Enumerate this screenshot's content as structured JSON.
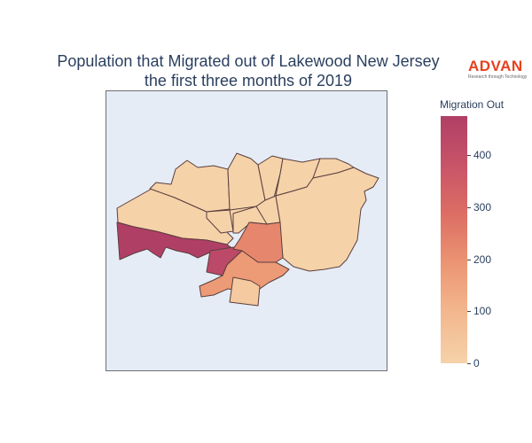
{
  "title": {
    "line1": "Population that Migrated out of Lakewood New Jersey",
    "line2": "the first three months of 2019"
  },
  "logo": {
    "word": "ADVAN",
    "tagline": "Research through Technology"
  },
  "colorbar": {
    "title": "Migration Out",
    "min": 0,
    "max": 475,
    "ticks": [
      {
        "value": 0,
        "label": "0"
      },
      {
        "value": 100,
        "label": "100"
      },
      {
        "value": 200,
        "label": "200"
      },
      {
        "value": 300,
        "label": "300"
      },
      {
        "value": 400,
        "label": "400"
      }
    ]
  },
  "colors": {
    "scale_low": "#f6d2a9",
    "scale_high": "#b03f66",
    "map_background": "#e5ecf6",
    "region_border": "#5a3e3e",
    "text": "#2a3f5f",
    "logo": "#e8401c"
  },
  "map_data": {
    "type": "choropleth",
    "value_label": "Migration Out",
    "regions": [
      {
        "id": "north-west",
        "value": 0
      },
      {
        "id": "north-center-a",
        "value": 0
      },
      {
        "id": "north-center-b",
        "value": 0
      },
      {
        "id": "north-center-c",
        "value": 0
      },
      {
        "id": "north-east",
        "value": 0
      },
      {
        "id": "west-strip",
        "value": 0
      },
      {
        "id": "center-small",
        "value": 0
      },
      {
        "id": "center-left",
        "value": 0
      },
      {
        "id": "east-large",
        "value": 0
      },
      {
        "id": "center-south",
        "value": 0
      },
      {
        "id": "south-west-long",
        "value": 475
      },
      {
        "id": "south-center-wedge",
        "value": 430
      },
      {
        "id": "south-middle",
        "value": 225
      },
      {
        "id": "south-lower",
        "value": 180
      },
      {
        "id": "south-bottom",
        "value": 30
      }
    ]
  }
}
